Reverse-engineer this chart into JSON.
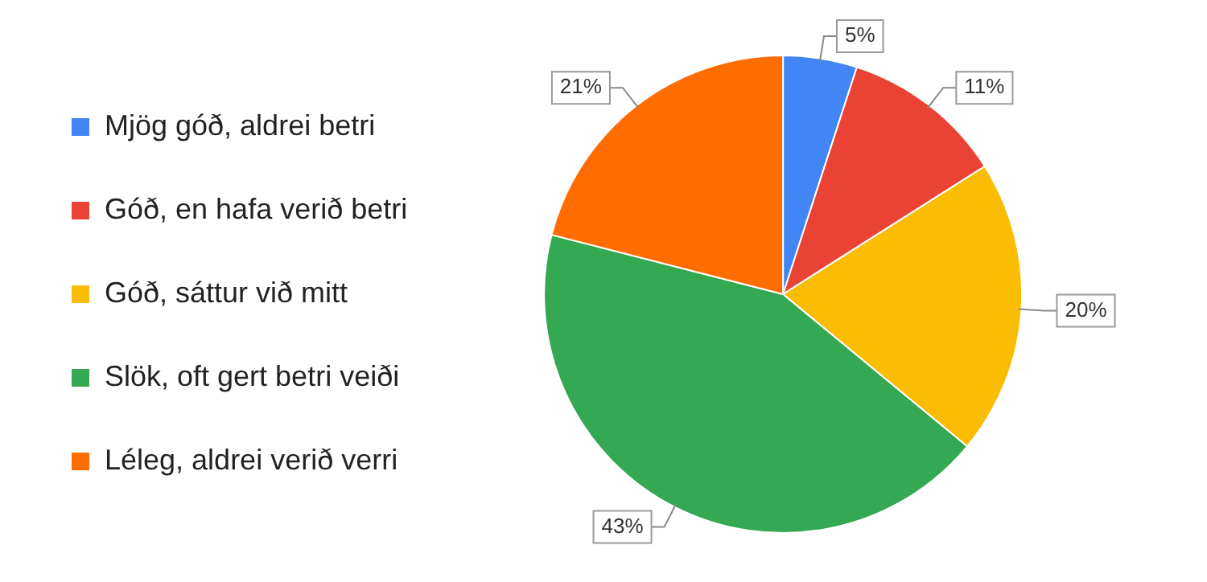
{
  "chart_data": {
    "type": "pie",
    "categories": [
      "Mjög góð, aldrei betri",
      "Góð, en hafa verið betri",
      "Góð, sáttur við mitt",
      "Slök, oft gert betri veiði",
      "Léleg, aldrei verið verri"
    ],
    "values": [
      5,
      11,
      20,
      43,
      21
    ],
    "colors": [
      "#4285f4",
      "#ea4335",
      "#fbbc04",
      "#34a853",
      "#ff6d01"
    ],
    "value_labels": [
      "5%",
      "11%",
      "20%",
      "43%",
      "21%"
    ],
    "legend": "left"
  }
}
